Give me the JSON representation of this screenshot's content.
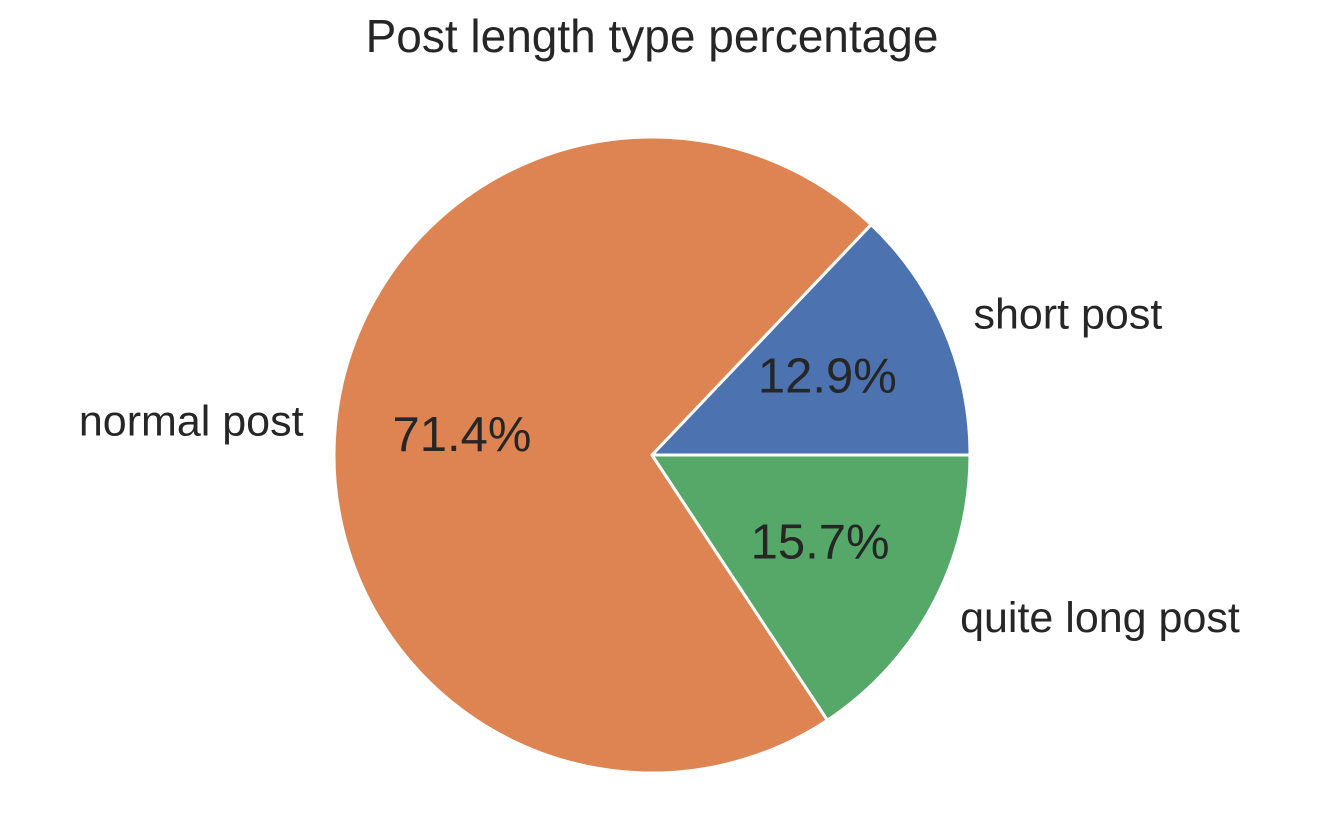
{
  "chart_data": {
    "type": "pie",
    "title": "Post length type percentage",
    "start_angle_deg": 0,
    "direction": "counterclockwise",
    "slices": [
      {
        "label": "short post",
        "value": 12.9,
        "percent_label": "12.9%",
        "color": "#4c72b0"
      },
      {
        "label": "normal post",
        "value": 71.4,
        "percent_label": "71.4%",
        "color": "#dd8452"
      },
      {
        "label": "quite long post",
        "value": 15.7,
        "percent_label": "15.7%",
        "color": "#55a868"
      }
    ],
    "wedge_edge_color": "#ffffff",
    "legend": "none"
  }
}
